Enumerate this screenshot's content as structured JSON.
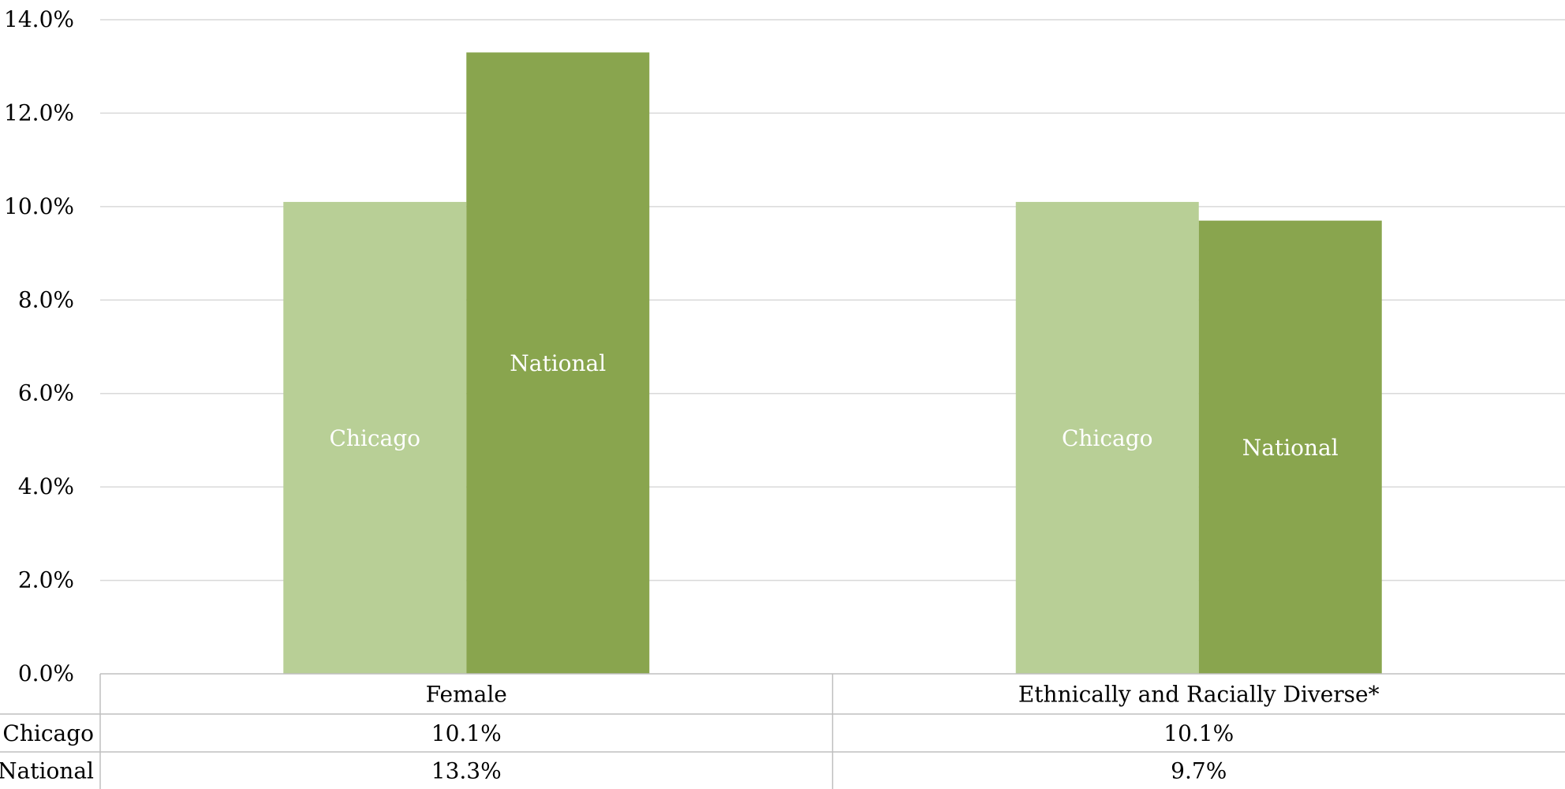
{
  "chart_data": {
    "type": "bar",
    "categories": [
      "Female",
      "Ethnically and Racially Diverse*"
    ],
    "series": [
      {
        "name": "Chicago",
        "values": [
          10.1,
          10.1
        ],
        "color": "#b8cf96",
        "table_values": [
          "10.1%",
          "10.1%"
        ]
      },
      {
        "name": "National",
        "values": [
          13.3,
          9.7
        ],
        "color": "#89a54e",
        "table_values": [
          "13.3%",
          "9.7%"
        ]
      }
    ],
    "ylim": [
      0,
      14
    ],
    "yticks": [
      "0.0%",
      "2.0%",
      "4.0%",
      "6.0%",
      "8.0%",
      "10.0%",
      "12.0%",
      "14.0%"
    ],
    "grid": true,
    "data_table": true,
    "colors": {
      "grid": "#d9d9d9",
      "table_border": "#bfbfbf",
      "text": "#000000",
      "bar_label": "#ffffff"
    }
  }
}
